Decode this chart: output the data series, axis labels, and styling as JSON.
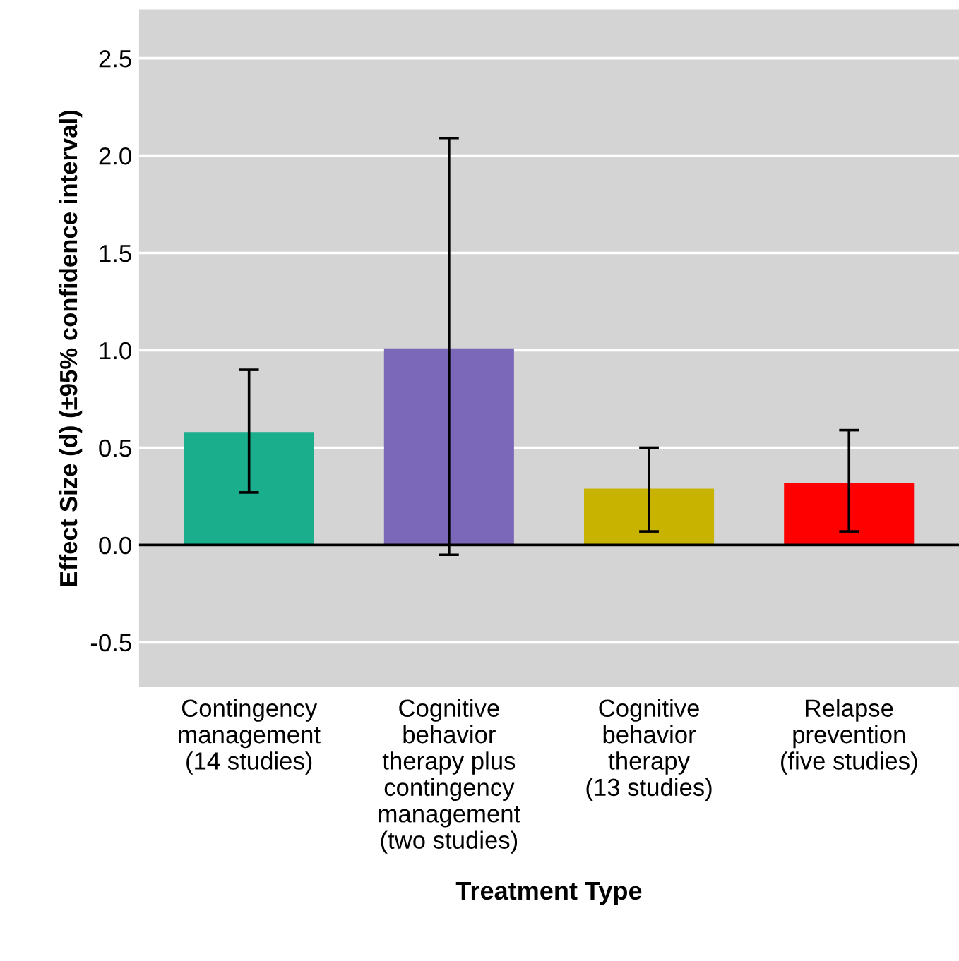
{
  "chart_data": {
    "type": "bar",
    "xlabel": "Treatment Type",
    "ylabel": "Effect Size (d) (±95% confidence interval)",
    "categories": [
      "Contingency\nmanagement\n(14 studies)",
      "Cognitive\nbehavior\ntherapy plus\ncontingency\nmanagement\n(two studies)",
      "Cognitive\nbehavior\ntherapy\n(13 studies)",
      "Relapse\nprevention\n(five studies)"
    ],
    "values": [
      0.58,
      1.01,
      0.29,
      0.32
    ],
    "colors": [
      "#1aae8c",
      "#7b68b8",
      "#c8b400",
      "#ff0000"
    ],
    "errors": [
      [
        0.27,
        0.9
      ],
      [
        -0.05,
        2.09
      ],
      [
        0.07,
        0.5
      ],
      [
        0.07,
        0.59
      ]
    ],
    "ylim": [
      -0.73,
      2.75
    ],
    "yticks": [
      {
        "value": -0.5,
        "label": "-0.5"
      },
      {
        "value": 0,
        "label": "0.0"
      },
      {
        "value": 0.5,
        "label": "0.5"
      },
      {
        "value": 1,
        "label": "1.0"
      },
      {
        "value": 1.5,
        "label": "1.5"
      },
      {
        "value": 2,
        "label": "2.0"
      },
      {
        "value": 2.5,
        "label": "2.5"
      }
    ],
    "grid": "y",
    "ref_lines": [
      {
        "axis": "y",
        "value": 0,
        "color": "#000000"
      }
    ]
  }
}
